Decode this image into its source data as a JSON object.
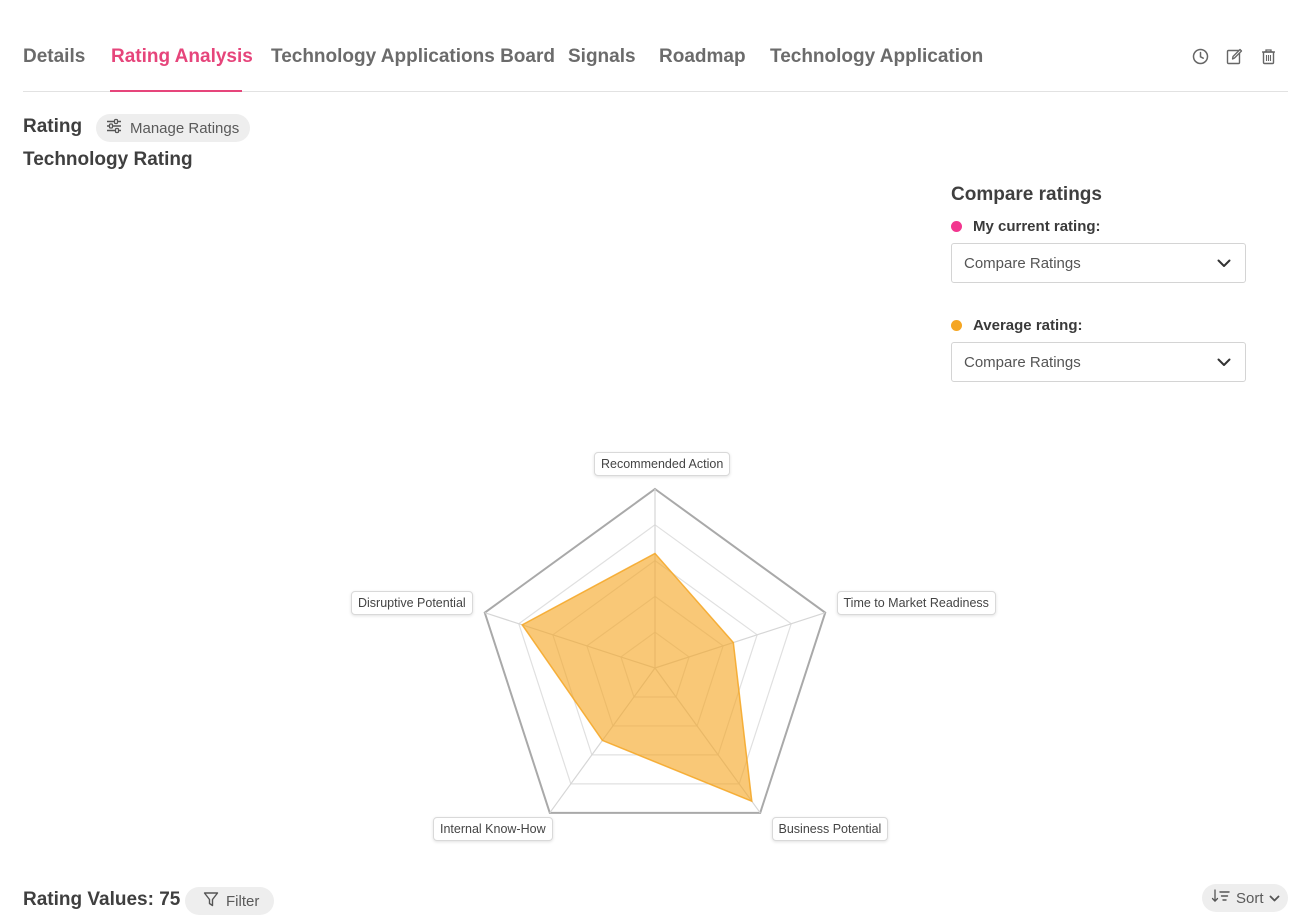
{
  "tabs": [
    {
      "label": "Details"
    },
    {
      "label": "Rating Analysis"
    },
    {
      "label": "Technology Applications Board"
    },
    {
      "label": "Signals"
    },
    {
      "label": "Roadmap"
    },
    {
      "label": "Technology Application"
    }
  ],
  "active_tab": "Rating Analysis",
  "tab_actions": [
    "history-icon",
    "edit-icon",
    "delete-icon"
  ],
  "rating": {
    "title": "Rating",
    "manage_label": "Manage Ratings",
    "subtitle": "Technology Rating"
  },
  "compare": {
    "title": "Compare ratings",
    "current": {
      "label": "My current rating:",
      "color": "#f2368f",
      "selected": "Compare Ratings"
    },
    "average": {
      "label": "Average rating:",
      "color": "#f5a623",
      "selected": "Compare Ratings"
    }
  },
  "chart_data": {
    "type": "radar",
    "axes": [
      "Recommended Action",
      "Time to Market Readiness",
      "Business Potential",
      "Internal Know-How",
      "Disruptive Potential"
    ],
    "levels": 5,
    "max": 5,
    "series": [
      {
        "name": "Average rating:",
        "color": "#f5a623",
        "values": [
          3.2,
          2.3,
          4.6,
          2.5,
          3.9
        ]
      }
    ]
  },
  "bottom": {
    "values_title": "Rating Values: 75",
    "filter_label": "Filter",
    "sort_label": "Sort"
  }
}
